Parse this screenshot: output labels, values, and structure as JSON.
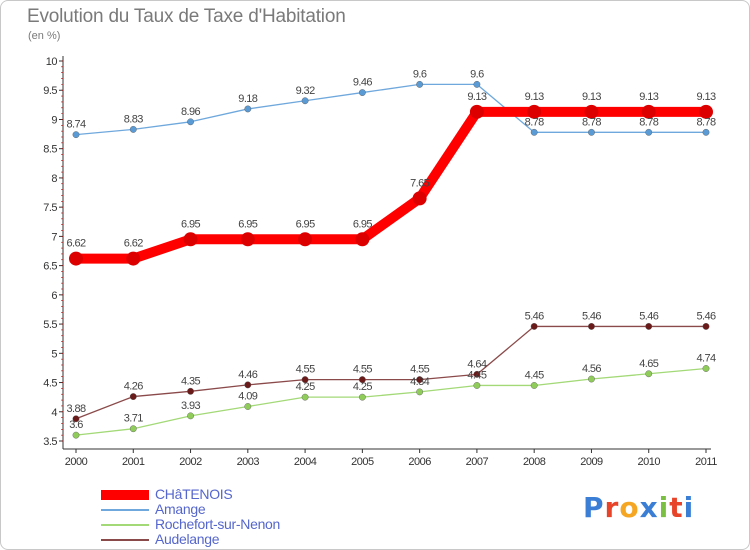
{
  "title": "Evolution du Taux de Taxe d'Habitation",
  "unit": "(en %)",
  "logo": {
    "letters": [
      "P",
      "r",
      "o",
      "x",
      "i",
      "t",
      "i"
    ],
    "colors": [
      "#3a7fd5",
      "#e8442a",
      "#f5a623",
      "#3a7fd5",
      "#7bc043",
      "#e8442a",
      "#3a7fd5"
    ]
  },
  "chart_data": {
    "type": "line",
    "title": "Evolution du Taux de Taxe d'Habitation",
    "ylabel": "(en %)",
    "xlabel": "",
    "x": [
      "2000",
      "2001",
      "2002",
      "2003",
      "2004",
      "2005",
      "2006",
      "2007",
      "2008",
      "2009",
      "2010",
      "2011"
    ],
    "ylim": [
      3.5,
      10
    ],
    "yticks": [
      "3.5",
      "4",
      "4.5",
      "5",
      "5.5",
      "6",
      "6.5",
      "7",
      "7.5",
      "8",
      "8.5",
      "9",
      "9.5",
      "10"
    ],
    "grid": false,
    "legend_placement": "bottom-left",
    "series": [
      {
        "name": "CHâTENOIS",
        "color": "#ff0000",
        "marker": "#dd0000",
        "values": [
          6.62,
          6.62,
          6.95,
          6.95,
          6.95,
          6.95,
          7.65,
          9.13,
          9.13,
          9.13,
          9.13,
          9.13
        ],
        "labels": [
          "6.62",
          "6.62",
          "6.95",
          "6.95",
          "6.95",
          "6.95",
          "7.65",
          "9.13",
          "9.13",
          "9.13",
          "9.13",
          "9.13"
        ]
      },
      {
        "name": "Amange",
        "color": "#6fa8dc",
        "marker": "#5b9bd5",
        "values": [
          8.74,
          8.83,
          8.96,
          9.18,
          9.32,
          9.46,
          9.6,
          9.6,
          8.78,
          8.78,
          8.78,
          8.78
        ],
        "labels": [
          "8.74",
          "8.83",
          "8.96",
          "9.18",
          "9.32",
          "9.46",
          "9.6",
          "9.6",
          "8.78",
          "8.78",
          "8.78",
          "8.78"
        ]
      },
      {
        "name": "Rochefort-sur-Nenon",
        "color": "#a3d977",
        "marker": "#8fcc5a",
        "values": [
          3.6,
          3.71,
          3.93,
          4.09,
          4.25,
          4.25,
          4.34,
          4.45,
          4.45,
          4.56,
          4.65,
          4.74
        ],
        "labels": [
          "3.6",
          "3.71",
          "3.93",
          "4.09",
          "4.25",
          "4.25",
          "4.34",
          "4.45",
          "4.45",
          "4.56",
          "4.65",
          "4.74"
        ]
      },
      {
        "name": "Audelange",
        "color": "#8b4a4a",
        "marker": "#6b1a1a",
        "values": [
          3.88,
          4.26,
          4.35,
          4.46,
          4.55,
          4.55,
          4.55,
          4.64,
          5.46,
          5.46,
          5.46,
          5.46
        ],
        "labels": [
          "3.88",
          "4.26",
          "4.35",
          "4.46",
          "4.55",
          "4.55",
          "4.55",
          "4.64",
          "5.46",
          "5.46",
          "5.46",
          "5.46"
        ]
      }
    ]
  }
}
